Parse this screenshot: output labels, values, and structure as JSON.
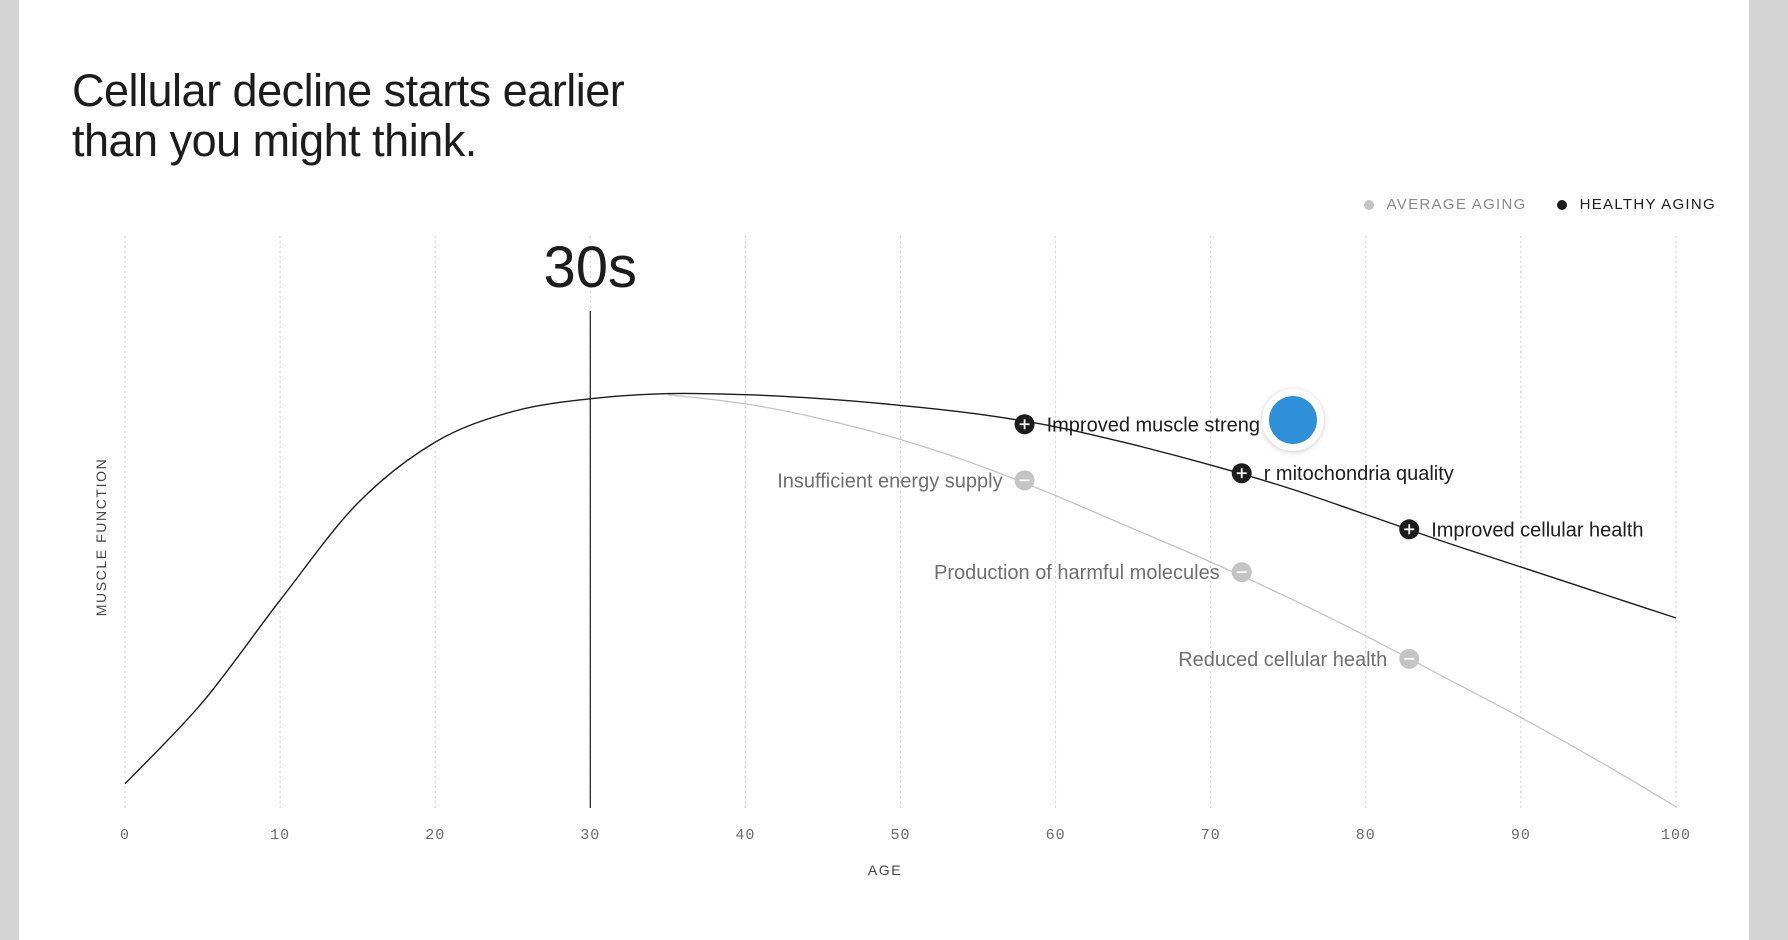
{
  "headline": {
    "line1": "Cellular decline starts earlier",
    "line2": "than you might think."
  },
  "colors": {
    "average": "#c4c4c4",
    "average_text": "#6f6f6f",
    "healthy": "#1c1c1c",
    "grid": "#cfcfcf",
    "cursor_blue": "#2f8fd8"
  },
  "legend": [
    {
      "label": "AVERAGE AGING",
      "series": "average"
    },
    {
      "label": "HEALTHY AGING",
      "series": "healthy"
    }
  ],
  "chart_data": {
    "type": "line",
    "xlabel": "AGE",
    "ylabel": "MUSCLE FUNCTION",
    "xlim": [
      0,
      100
    ],
    "ylim": [
      0,
      100
    ],
    "x_ticks": [
      "0",
      "10",
      "20",
      "30",
      "40",
      "50",
      "60",
      "70",
      "80",
      "90",
      "100"
    ],
    "y_ticks_shown": false,
    "grid": "vertical dotted",
    "legend_position": "top-right",
    "highlight": {
      "x": 30,
      "label": "30s"
    },
    "series": [
      {
        "name": "HEALTHY AGING",
        "points": [
          [
            0,
            12
          ],
          [
            5,
            28
          ],
          [
            10,
            48
          ],
          [
            15,
            67
          ],
          [
            20,
            79
          ],
          [
            25,
            85
          ],
          [
            30,
            87.5
          ],
          [
            35,
            88.5
          ],
          [
            40,
            88.3
          ],
          [
            45,
            87.5
          ],
          [
            50,
            86.2
          ],
          [
            55,
            84.5
          ],
          [
            60,
            82
          ],
          [
            65,
            78.5
          ],
          [
            70,
            74.5
          ],
          [
            75,
            70
          ],
          [
            80,
            64.8
          ],
          [
            85,
            59.5
          ],
          [
            90,
            54.5
          ],
          [
            95,
            49.5
          ],
          [
            100,
            44.5
          ]
        ]
      },
      {
        "name": "AVERAGE AGING",
        "points": [
          [
            35,
            88.3
          ],
          [
            40,
            86.5
          ],
          [
            45,
            83.5
          ],
          [
            50,
            79.5
          ],
          [
            55,
            74.5
          ],
          [
            60,
            68.5
          ],
          [
            65,
            62
          ],
          [
            70,
            55.5
          ],
          [
            75,
            48.5
          ],
          [
            80,
            41
          ],
          [
            85,
            33
          ],
          [
            90,
            25
          ],
          [
            95,
            16.5
          ],
          [
            100,
            7.5
          ]
        ]
      }
    ],
    "markers": [
      {
        "series": "HEALTHY AGING",
        "type": "plus",
        "x": 58,
        "y": 82.5,
        "label": "Improved muscle streng"
      },
      {
        "series": "HEALTHY AGING",
        "type": "plus",
        "x": 72,
        "y": 72.9,
        "label": "r mitochondria quality"
      },
      {
        "series": "HEALTHY AGING",
        "type": "plus",
        "x": 82.8,
        "y": 61.9,
        "label": "Improved cellular health"
      },
      {
        "series": "AVERAGE AGING",
        "type": "minus",
        "x": 58,
        "y": 71.5,
        "label": "Insufficient energy supply"
      },
      {
        "series": "AVERAGE AGING",
        "type": "minus",
        "x": 72,
        "y": 53.5,
        "label": "Production of harmful molecules"
      },
      {
        "series": "AVERAGE AGING",
        "type": "minus",
        "x": 82.8,
        "y": 36.5,
        "label": "Reduced cellular health"
      }
    ]
  }
}
